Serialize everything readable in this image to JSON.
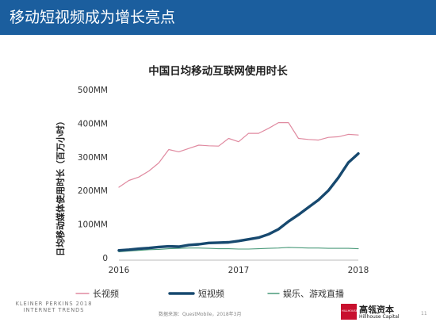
{
  "slide": {
    "title": "移动短视频成为增长亮点",
    "footer_left": "KLEINER PERKINS 2018 INTERNET TRENDS",
    "source": "数据来源：QuestMobile，2018年3月",
    "logo_box_text": "HILLHOUSE",
    "logo_cn": "高瓴资本",
    "logo_en": "Hillhouse Capital",
    "page_number": "11"
  },
  "colors": {
    "banner": "#1b5e9e",
    "long_video": "#e08aa0",
    "short_video": "#17496f",
    "games": "#4a9a7a",
    "axis": "#bbbbbb"
  },
  "chart_data": {
    "type": "line",
    "title": "中国日均移动互联网使用时长",
    "ylabel": "日均移动媒体使用时长（百万小时）",
    "xlabel": "",
    "x_range": [
      2016,
      2018
    ],
    "x_ticks": [
      "2016",
      "2017",
      "2018"
    ],
    "ylim": [
      0,
      500
    ],
    "y_ticks": [
      {
        "value": 0,
        "label": "0"
      },
      {
        "value": 100,
        "label": "100MM"
      },
      {
        "value": 200,
        "label": "200MM"
      },
      {
        "value": 300,
        "label": "300MM"
      },
      {
        "value": 400,
        "label": "400MM"
      },
      {
        "value": 500,
        "label": "500MM"
      }
    ],
    "grid": false,
    "legend": "bottom",
    "x": [
      2016.0,
      2016.0833,
      2016.1667,
      2016.25,
      2016.3333,
      2016.4167,
      2016.5,
      2016.5833,
      2016.6667,
      2016.75,
      2016.8333,
      2016.9167,
      2017.0,
      2017.0833,
      2017.1667,
      2017.25,
      2017.3333,
      2017.4167,
      2017.5,
      2017.5833,
      2017.6667,
      2017.75,
      2017.8333,
      2017.9167,
      2018.0
    ],
    "series": [
      {
        "name": "长视频",
        "color": "#e08aa0",
        "width": 1.2,
        "values": [
          210,
          230,
          240,
          258,
          282,
          322,
          315,
          325,
          335,
          333,
          332,
          355,
          345,
          370,
          370,
          385,
          402,
          402,
          355,
          352,
          350,
          358,
          360,
          367,
          365
        ]
      },
      {
        "name": "短视频",
        "color": "#17496f",
        "width": 3.4,
        "values": [
          22,
          24,
          27,
          29,
          32,
          34,
          33,
          38,
          40,
          44,
          45,
          46,
          50,
          55,
          60,
          70,
          85,
          108,
          128,
          150,
          172,
          200,
          238,
          283,
          310
        ]
      },
      {
        "name": "娱乐、游戏直播",
        "color": "#4a9a7a",
        "width": 1.1,
        "values": [
          18,
          20,
          22,
          24,
          25,
          27,
          28,
          29,
          29,
          28,
          27,
          27,
          26,
          26,
          27,
          28,
          29,
          31,
          30,
          29,
          29,
          28,
          28,
          28,
          27
        ]
      }
    ]
  }
}
